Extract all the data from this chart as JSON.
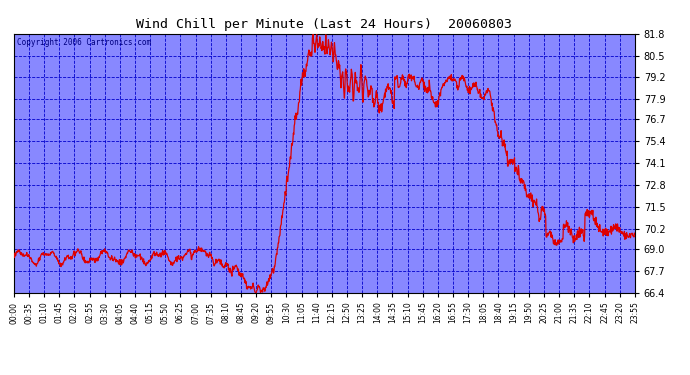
{
  "title": "Wind Chill per Minute (Last 24 Hours)  20060803",
  "copyright_text": "Copyright 2006 Cartronics.com",
  "ylim": [
    66.4,
    81.8
  ],
  "yticks": [
    66.4,
    67.7,
    69.0,
    70.2,
    71.5,
    72.8,
    74.1,
    75.4,
    76.7,
    77.9,
    79.2,
    80.5,
    81.8
  ],
  "line_color": "#dd0000",
  "background_color": "#8888ff",
  "grid_color": "#0000cc",
  "title_color": "#000000",
  "copyright_color": "#000080",
  "x_labels": [
    "00:00",
    "00:35",
    "01:10",
    "01:45",
    "02:20",
    "02:55",
    "03:30",
    "04:05",
    "04:40",
    "05:15",
    "05:50",
    "06:25",
    "07:00",
    "07:35",
    "08:10",
    "08:45",
    "09:20",
    "09:55",
    "10:30",
    "11:05",
    "11:40",
    "12:15",
    "12:50",
    "13:25",
    "14:00",
    "14:35",
    "15:10",
    "15:45",
    "16:20",
    "16:55",
    "17:30",
    "18:05",
    "18:40",
    "19:15",
    "19:50",
    "20:25",
    "21:00",
    "21:35",
    "22:10",
    "22:45",
    "23:20",
    "23:55"
  ],
  "figsize": [
    6.9,
    3.75
  ],
  "dpi": 100
}
